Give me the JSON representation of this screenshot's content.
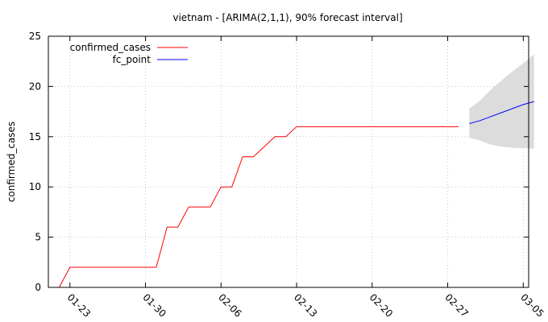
{
  "chart_data": {
    "type": "line",
    "title": "vietnam -  [ARIMA(2,1,1), 90% forecast interval]",
    "xlabel": "",
    "ylabel": "confirmed_cases",
    "ylim": [
      0,
      25
    ],
    "yticks": [
      0,
      5,
      10,
      15,
      20,
      25
    ],
    "x_start": "01-21",
    "xlim_days": [
      0,
      44.5
    ],
    "xtick_labels": [
      "01-23",
      "01-30",
      "02-06",
      "02-13",
      "02-20",
      "02-27",
      "03-05"
    ],
    "grid": true,
    "legend_position": "top-left",
    "series": [
      {
        "name": "confirmed_cases",
        "color": "#ff0000",
        "points": [
          [
            "01-22",
            0
          ],
          [
            "01-23",
            2
          ],
          [
            "01-24",
            2
          ],
          [
            "01-25",
            2
          ],
          [
            "01-26",
            2
          ],
          [
            "01-27",
            2
          ],
          [
            "01-28",
            2
          ],
          [
            "01-29",
            2
          ],
          [
            "01-30",
            2
          ],
          [
            "01-31",
            2
          ],
          [
            "02-01",
            6
          ],
          [
            "02-02",
            6
          ],
          [
            "02-03",
            8
          ],
          [
            "02-04",
            8
          ],
          [
            "02-05",
            8
          ],
          [
            "02-06",
            10
          ],
          [
            "02-07",
            10
          ],
          [
            "02-08",
            13
          ],
          [
            "02-09",
            13
          ],
          [
            "02-10",
            14
          ],
          [
            "02-11",
            15
          ],
          [
            "02-12",
            15
          ],
          [
            "02-13",
            16
          ],
          [
            "02-14",
            16
          ],
          [
            "02-15",
            16
          ],
          [
            "02-16",
            16
          ],
          [
            "02-17",
            16
          ],
          [
            "02-18",
            16
          ],
          [
            "02-19",
            16
          ],
          [
            "02-20",
            16
          ],
          [
            "02-21",
            16
          ],
          [
            "02-22",
            16
          ],
          [
            "02-23",
            16
          ],
          [
            "02-24",
            16
          ],
          [
            "02-25",
            16
          ],
          [
            "02-26",
            16
          ],
          [
            "02-27",
            16
          ],
          [
            "02-28",
            16
          ]
        ]
      },
      {
        "name": "fc_point",
        "color": "#0000ff",
        "points": [
          [
            "02-29",
            16.3
          ],
          [
            "03-01",
            16.6
          ],
          [
            "03-02",
            17.0
          ],
          [
            "03-03",
            17.4
          ],
          [
            "03-04",
            17.8
          ],
          [
            "03-05",
            18.2
          ],
          [
            "03-06",
            18.5
          ]
        ]
      }
    ],
    "forecast_interval": {
      "color": "#dcdcdc",
      "points": [
        [
          "02-29",
          14.9,
          17.8
        ],
        [
          "03-01",
          14.6,
          18.6
        ],
        [
          "03-02",
          14.2,
          19.7
        ],
        [
          "03-03",
          14.0,
          20.6
        ],
        [
          "03-04",
          13.9,
          21.5
        ],
        [
          "03-05",
          13.85,
          22.3
        ],
        [
          "03-06",
          13.8,
          23.2
        ]
      ]
    }
  }
}
